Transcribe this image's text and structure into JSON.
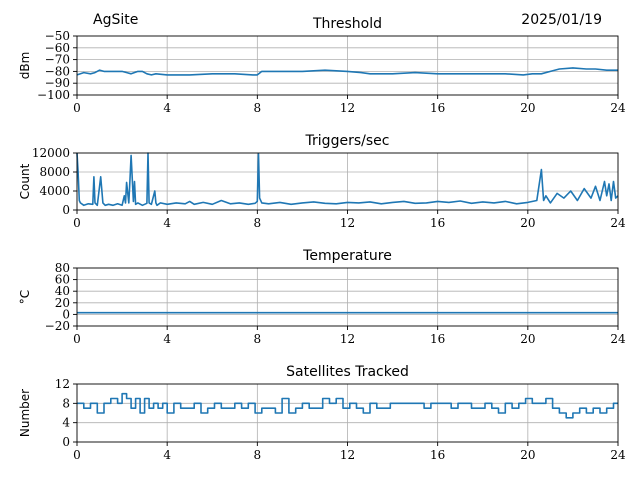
{
  "header": {
    "site": "AgSite",
    "date": "2025/01/19"
  },
  "colors": {
    "line": "#1f77b4",
    "grid": "#b0b0b0",
    "axis": "#000000"
  },
  "chart_data": [
    {
      "type": "line",
      "title": "Threshold",
      "xlabel": "",
      "ylabel": "dBm",
      "xlim": [
        0,
        24
      ],
      "ylim": [
        -100,
        -50
      ],
      "xticks": [
        0,
        4,
        8,
        12,
        16,
        20,
        24
      ],
      "yticks": [
        -100,
        -90,
        -80,
        -70,
        -60,
        -50
      ],
      "ytick_labels": [
        "−100",
        "−90",
        "−80",
        "−70",
        "−60",
        "−50"
      ],
      "grid": true,
      "series": [
        {
          "x": [
            0,
            0.3,
            0.6,
            0.8,
            1.0,
            1.2,
            1.4,
            1.6,
            2.0,
            2.4,
            2.7,
            2.9,
            3.1,
            3.3,
            3.5,
            4.0,
            5.0,
            6.0,
            7.0,
            7.8,
            8.0,
            8.2,
            9.0,
            10.0,
            11.0,
            12.0,
            12.6,
            13.0,
            14.0,
            15.0,
            16.0,
            17.0,
            18.0,
            19.0,
            19.8,
            20.2,
            20.6,
            21.0,
            21.4,
            22.0,
            22.6,
            23.0,
            23.5,
            24.0
          ],
          "y": [
            -83,
            -81,
            -82,
            -81,
            -79,
            -80,
            -80,
            -80,
            -80,
            -82,
            -80,
            -80,
            -82,
            -83,
            -82,
            -83,
            -83,
            -82,
            -82,
            -83,
            -83,
            -80,
            -80,
            -80,
            -79,
            -80,
            -81,
            -82,
            -82,
            -81,
            -82,
            -82,
            -82,
            -82,
            -83,
            -82,
            -82,
            -80,
            -78,
            -77,
            -78,
            -78,
            -79,
            -79
          ]
        }
      ]
    },
    {
      "type": "line",
      "title": "Triggers/sec",
      "xlabel": "",
      "ylabel": "Count",
      "xlim": [
        0,
        24
      ],
      "ylim": [
        0,
        12000
      ],
      "xticks": [
        0,
        4,
        8,
        12,
        16,
        20,
        24
      ],
      "yticks": [
        0,
        4000,
        8000,
        12000
      ],
      "grid": true,
      "series": [
        {
          "x": [
            0,
            0.05,
            0.1,
            0.15,
            0.3,
            0.5,
            0.7,
            0.75,
            0.8,
            0.9,
            1.05,
            1.15,
            1.25,
            1.4,
            1.6,
            1.8,
            2.0,
            2.1,
            2.15,
            2.2,
            2.3,
            2.35,
            2.4,
            2.5,
            2.55,
            2.6,
            2.7,
            2.9,
            3.1,
            3.15,
            3.2,
            3.3,
            3.45,
            3.5,
            3.55,
            3.7,
            4.0,
            4.4,
            4.8,
            5.0,
            5.2,
            5.6,
            6.0,
            6.4,
            6.8,
            7.2,
            7.6,
            7.9,
            8.0,
            8.05,
            8.1,
            8.2,
            8.5,
            9.0,
            9.5,
            10.0,
            10.5,
            11.0,
            11.5,
            12.0,
            12.5,
            13.0,
            13.5,
            14.0,
            14.5,
            15.0,
            15.5,
            16.0,
            16.5,
            17.0,
            17.5,
            18.0,
            18.5,
            19.0,
            19.5,
            20.0,
            20.4,
            20.6,
            20.7,
            20.8,
            21.0,
            21.3,
            21.6,
            21.9,
            22.2,
            22.5,
            22.8,
            23.0,
            23.2,
            23.4,
            23.5,
            23.6,
            23.7,
            23.8,
            23.9,
            24.0
          ],
          "y": [
            12000,
            8000,
            2000,
            1500,
            1000,
            1300,
            1200,
            7000,
            1500,
            1000,
            7000,
            1500,
            1000,
            1200,
            1000,
            1300,
            1000,
            3000,
            1500,
            5800,
            1500,
            6500,
            11500,
            1800,
            6000,
            1200,
            1500,
            1000,
            1400,
            12000,
            1500,
            1200,
            4000,
            1500,
            1000,
            1500,
            1200,
            1500,
            1300,
            1800,
            1200,
            1600,
            1200,
            2000,
            1300,
            1500,
            1200,
            1400,
            1800,
            11800,
            2500,
            1500,
            1300,
            1600,
            1200,
            1500,
            1700,
            1400,
            1300,
            1600,
            1500,
            1700,
            1300,
            1600,
            1800,
            1400,
            1500,
            1800,
            1600,
            1900,
            1400,
            1700,
            1500,
            1800,
            1300,
            1600,
            2000,
            8500,
            2000,
            3000,
            1500,
            3500,
            2500,
            4000,
            2000,
            4500,
            2500,
            5000,
            2000,
            6000,
            3000,
            5500,
            2000,
            6000,
            2500,
            3000
          ]
        }
      ]
    },
    {
      "type": "line",
      "title": "Temperature",
      "xlabel": "",
      "ylabel": "°C",
      "xlim": [
        0,
        24
      ],
      "ylim": [
        -20,
        80
      ],
      "xticks": [
        0,
        4,
        8,
        12,
        16,
        20,
        24
      ],
      "yticks": [
        -20,
        0,
        20,
        40,
        60,
        80
      ],
      "ytick_labels": [
        "−20",
        "0",
        "20",
        "40",
        "60",
        "80"
      ],
      "grid": true,
      "series": [
        {
          "x": [
            0,
            24
          ],
          "y": [
            3,
            3
          ]
        }
      ]
    },
    {
      "type": "line",
      "title": "Satellites Tracked",
      "xlabel": "",
      "ylabel": "Number",
      "xlim": [
        0,
        24
      ],
      "ylim": [
        0,
        12
      ],
      "xticks": [
        0,
        4,
        8,
        12,
        16,
        20,
        24
      ],
      "yticks": [
        0,
        4,
        8,
        12
      ],
      "grid": true,
      "series": [
        {
          "step": true,
          "x": [
            0,
            0.3,
            0.6,
            0.9,
            1.2,
            1.5,
            1.8,
            2.0,
            2.2,
            2.4,
            2.6,
            2.8,
            3.0,
            3.2,
            3.4,
            3.6,
            3.8,
            4.0,
            4.3,
            4.6,
            4.9,
            5.2,
            5.5,
            5.8,
            6.1,
            6.4,
            6.7,
            7.0,
            7.3,
            7.6,
            7.9,
            8.2,
            8.5,
            8.8,
            9.1,
            9.4,
            9.7,
            10.0,
            10.3,
            10.6,
            10.9,
            11.2,
            11.5,
            11.8,
            12.1,
            12.4,
            12.7,
            13.0,
            13.3,
            13.6,
            13.9,
            14.2,
            14.5,
            14.8,
            15.1,
            15.4,
            15.7,
            16.0,
            16.3,
            16.6,
            16.9,
            17.2,
            17.5,
            17.8,
            18.1,
            18.4,
            18.7,
            19.0,
            19.3,
            19.6,
            19.9,
            20.2,
            20.5,
            20.8,
            21.1,
            21.4,
            21.7,
            22.0,
            22.3,
            22.6,
            22.9,
            23.2,
            23.5,
            23.8,
            24.0
          ],
          "y": [
            8,
            7,
            8,
            6,
            8,
            9,
            8,
            10,
            9,
            7,
            9,
            6,
            9,
            7,
            8,
            7,
            8,
            6,
            8,
            7,
            7,
            8,
            6,
            7,
            8,
            7,
            7,
            8,
            7,
            8,
            6,
            7,
            7,
            6,
            9,
            6,
            7,
            8,
            7,
            7,
            9,
            8,
            9,
            7,
            8,
            7,
            6,
            8,
            7,
            7,
            8,
            8,
            8,
            8,
            8,
            7,
            8,
            8,
            8,
            7,
            8,
            8,
            7,
            7,
            8,
            7,
            6,
            8,
            7,
            8,
            9,
            8,
            8,
            9,
            7,
            6,
            5,
            6,
            7,
            6,
            7,
            6,
            7,
            8,
            8
          ]
        }
      ]
    }
  ]
}
